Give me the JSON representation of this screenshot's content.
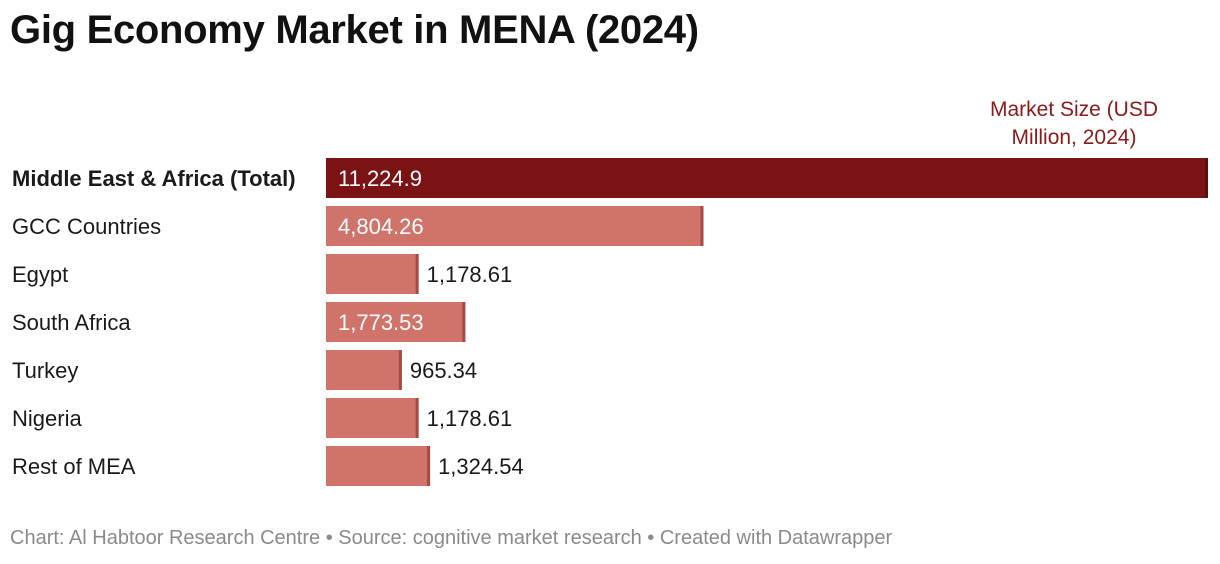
{
  "chart_data": {
    "type": "bar",
    "orientation": "horizontal",
    "title": "Gig Economy Market in MENA (2024)",
    "column_header": "Market Size (USD Million, 2024)",
    "categories": [
      "Middle East & Africa (Total)",
      "GCC Countries",
      "Egypt",
      "South Africa",
      "Turkey",
      "Nigeria",
      "Rest of MEA"
    ],
    "values": [
      11224.9,
      4804.26,
      1178.61,
      1773.53,
      965.34,
      1178.61,
      1324.54
    ],
    "value_labels": [
      "11,224.9",
      "4,804.26",
      "1,178.61",
      "1,773.53",
      "965.34",
      "1,178.61",
      "1,324.54"
    ],
    "highlight_index": 0,
    "xlim": [
      0,
      11224.9
    ],
    "colors": {
      "highlight": "#7b1214",
      "bar": "#d0736a",
      "bar_edge": "#a84a44",
      "label_inside": "#ffffff",
      "label_outside": "#1a1a1a"
    }
  },
  "footer": "Chart: Al Habtoor Research Centre • Source: cognitive market research • Created with Datawrapper"
}
